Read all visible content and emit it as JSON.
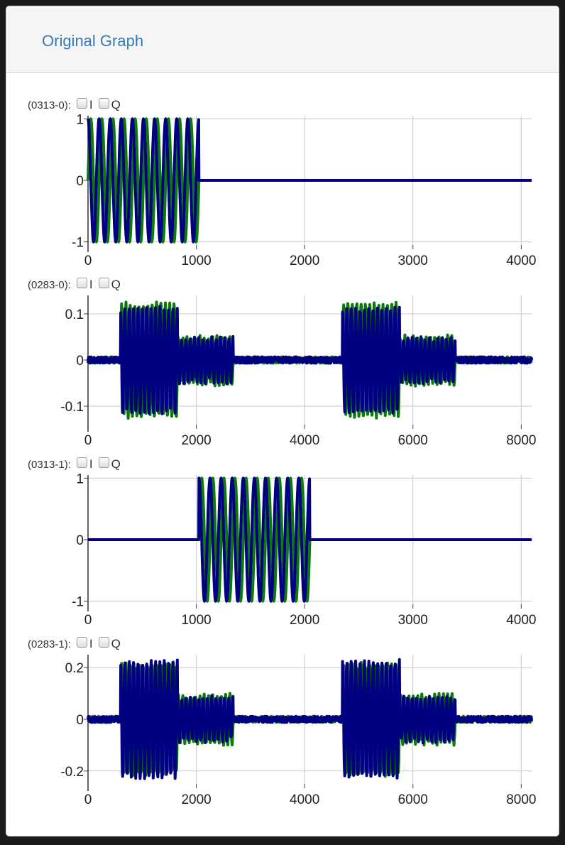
{
  "panel": {
    "title": "Original Graph"
  },
  "colors": {
    "i_series": "#0b7a0b",
    "q_series": "#000080",
    "grid": "#c8c8c8",
    "title": "#337ab7"
  },
  "chart_data": [
    {
      "id": "0313-0",
      "label": "(0313-0):",
      "type": "line",
      "options": [
        "I",
        "Q"
      ],
      "xlim": [
        0,
        4096
      ],
      "ylim": [
        -1.05,
        1.05
      ],
      "xticks": [
        0,
        1000,
        2000,
        3000,
        4000
      ],
      "yticks": [
        1,
        0,
        -1
      ],
      "ytick_labels": [
        "1",
        "0",
        "-1"
      ],
      "segments": [
        {
          "x0": 0,
          "x1": 1024,
          "amp_i": 1.0,
          "amp_q": 1.0,
          "cycles": 10
        },
        {
          "x0": 1024,
          "x1": 4096,
          "amp_i": 0.0,
          "amp_q": 0.0,
          "cycles": 0
        }
      ],
      "noise": 0.0
    },
    {
      "id": "0283-0",
      "label": "(0283-0):",
      "type": "line",
      "options": [
        "I",
        "Q"
      ],
      "xlim": [
        0,
        8192
      ],
      "ylim": [
        -0.14,
        0.14
      ],
      "xticks": [
        0,
        2000,
        4000,
        6000,
        8000
      ],
      "yticks": [
        0.1,
        0,
        -0.1
      ],
      "ytick_labels": [
        "0.1",
        "0",
        "-0.1"
      ],
      "segments": [
        {
          "x0": 600,
          "x1": 1650,
          "amp_i": 0.12,
          "amp_q": 0.11,
          "cycles": 13
        },
        {
          "x0": 1650,
          "x1": 2680,
          "amp_i": 0.05,
          "amp_q": 0.045,
          "cycles": 13
        },
        {
          "x0": 4700,
          "x1": 5750,
          "amp_i": 0.12,
          "amp_q": 0.11,
          "cycles": 13
        },
        {
          "x0": 5750,
          "x1": 6780,
          "amp_i": 0.05,
          "amp_q": 0.045,
          "cycles": 13
        }
      ],
      "noise": 0.007
    },
    {
      "id": "0313-1",
      "label": "(0313-1):",
      "type": "line",
      "options": [
        "I",
        "Q"
      ],
      "xlim": [
        0,
        4096
      ],
      "ylim": [
        -1.05,
        1.05
      ],
      "xticks": [
        0,
        1000,
        2000,
        3000,
        4000
      ],
      "yticks": [
        1,
        0,
        -1
      ],
      "ytick_labels": [
        "1",
        "0",
        "-1"
      ],
      "segments": [
        {
          "x0": 0,
          "x1": 1024,
          "amp_i": 0.0,
          "amp_q": 0.0,
          "cycles": 0
        },
        {
          "x0": 1024,
          "x1": 2048,
          "amp_i": 1.0,
          "amp_q": 1.0,
          "cycles": 10
        },
        {
          "x0": 2048,
          "x1": 4096,
          "amp_i": 0.0,
          "amp_q": 0.0,
          "cycles": 0
        }
      ],
      "noise": 0.0
    },
    {
      "id": "0283-1",
      "label": "(0283-1):",
      "type": "line",
      "options": [
        "I",
        "Q"
      ],
      "xlim": [
        0,
        8192
      ],
      "ylim": [
        -0.25,
        0.25
      ],
      "xticks": [
        0,
        2000,
        4000,
        6000,
        8000
      ],
      "yticks": [
        0.2,
        0,
        -0.2
      ],
      "ytick_labels": [
        "0.2",
        "0",
        "-0.2"
      ],
      "segments": [
        {
          "x0": 600,
          "x1": 1650,
          "amp_i": 0.21,
          "amp_q": 0.22,
          "cycles": 13
        },
        {
          "x0": 1650,
          "x1": 2680,
          "amp_i": 0.09,
          "amp_q": 0.08,
          "cycles": 13
        },
        {
          "x0": 4700,
          "x1": 5750,
          "amp_i": 0.21,
          "amp_q": 0.22,
          "cycles": 13
        },
        {
          "x0": 5750,
          "x1": 6780,
          "amp_i": 0.09,
          "amp_q": 0.08,
          "cycles": 13
        }
      ],
      "noise": 0.012
    }
  ]
}
